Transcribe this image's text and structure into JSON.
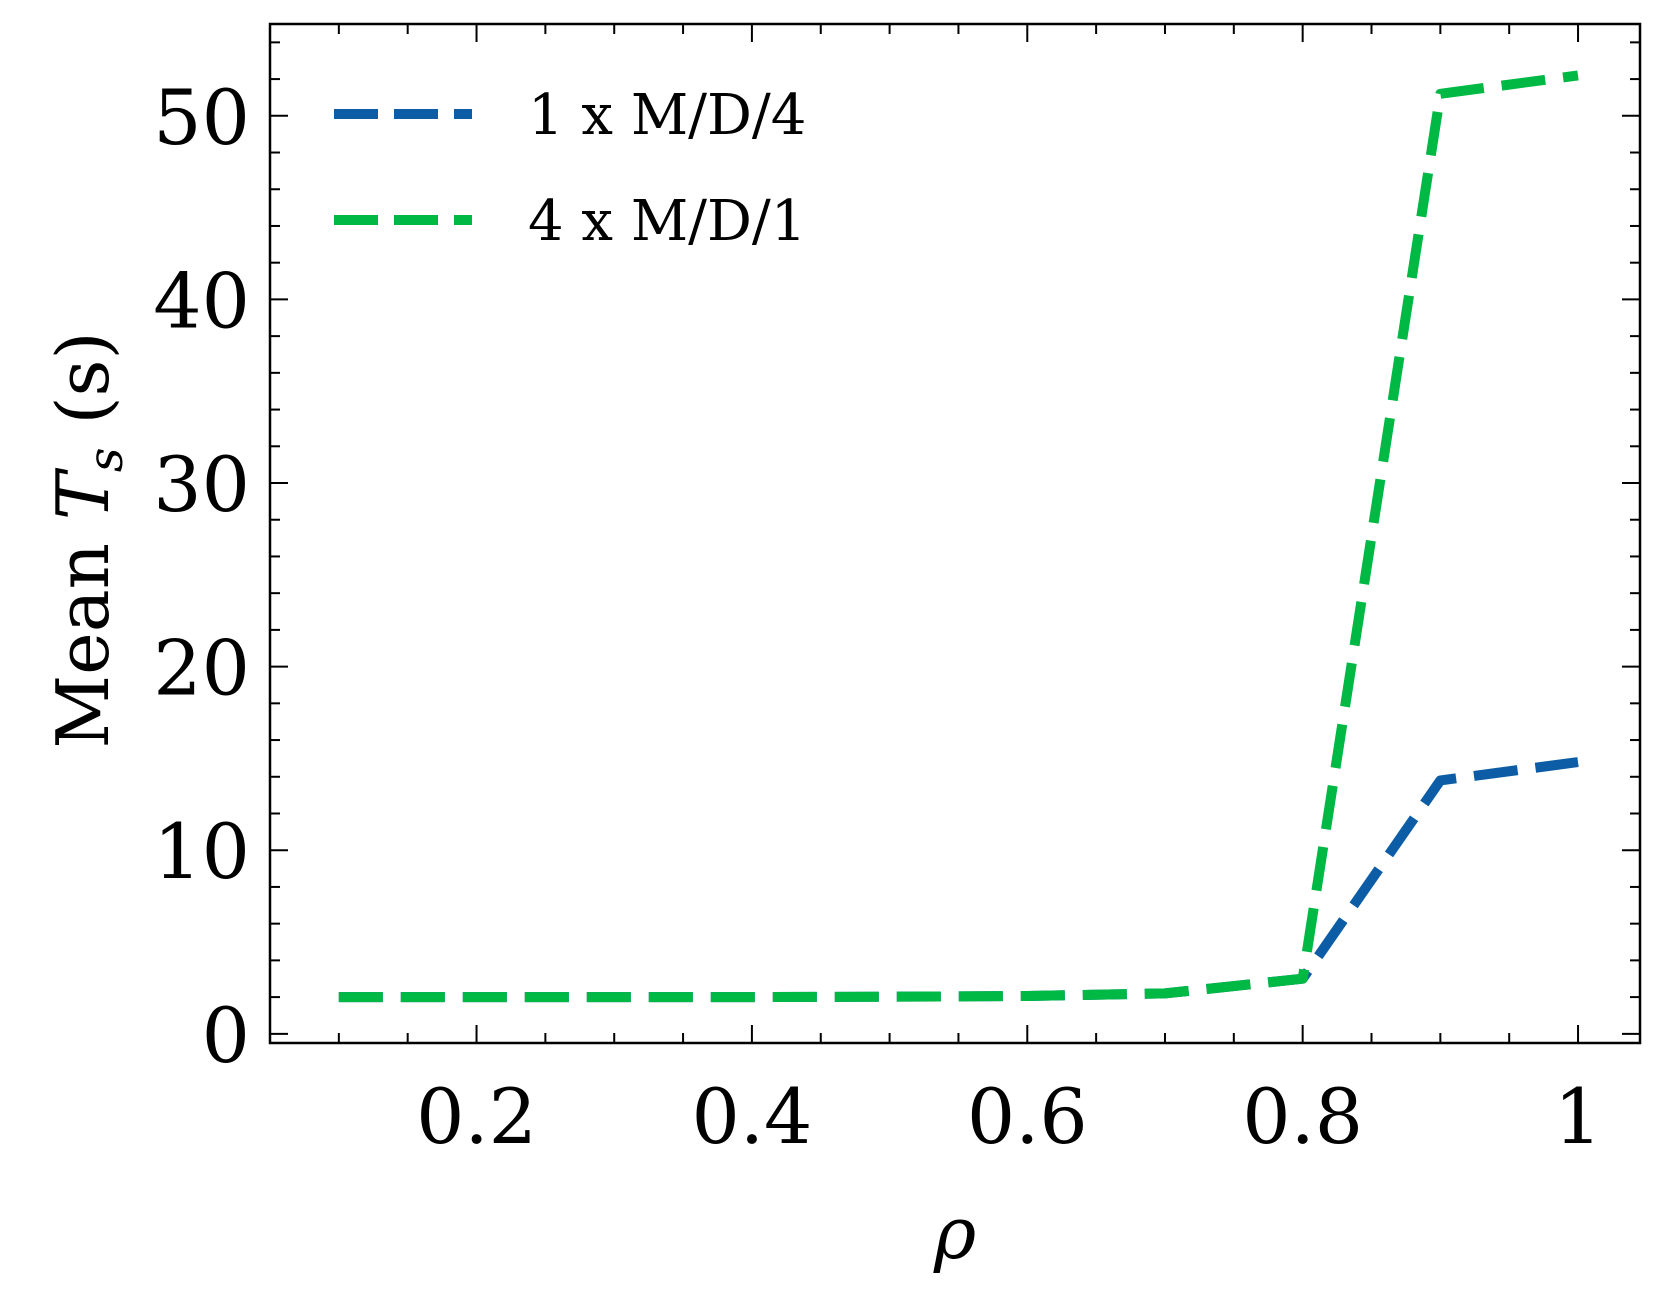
{
  "chart_data": {
    "type": "line",
    "xlabel": "ρ",
    "ylabel_prefix": "Mean ",
    "ylabel_symbol": "T",
    "ylabel_subscript": "s",
    "ylabel_suffix": " (s)",
    "xlim": [
      0.05,
      1.045
    ],
    "ylim": [
      -0.5,
      55
    ],
    "x_ticks": [
      0.2,
      0.4,
      0.6,
      0.8,
      1.0
    ],
    "x_tick_labels": [
      "0.2",
      "0.4",
      "0.6",
      "0.8",
      "1"
    ],
    "y_ticks": [
      0,
      10,
      20,
      30,
      40,
      50
    ],
    "y_tick_labels": [
      "0",
      "10",
      "20",
      "30",
      "40",
      "50"
    ],
    "grid": false,
    "legend_position": "top-left",
    "x": [
      0.1,
      0.2,
      0.3,
      0.4,
      0.5,
      0.6,
      0.7,
      0.8,
      0.9,
      1.0
    ],
    "series": [
      {
        "name": "1 x M/D/4",
        "color": "#0c5da5",
        "values": [
          2.0,
          2.0,
          2.0,
          2.0,
          2.02,
          2.06,
          2.2,
          3.0,
          13.8,
          14.8
        ]
      },
      {
        "name": "4 x M/D/1",
        "color": "#00b945",
        "values": [
          2.0,
          2.0,
          2.0,
          2.0,
          2.02,
          2.06,
          2.2,
          3.0,
          51.2,
          52.2
        ]
      }
    ]
  }
}
